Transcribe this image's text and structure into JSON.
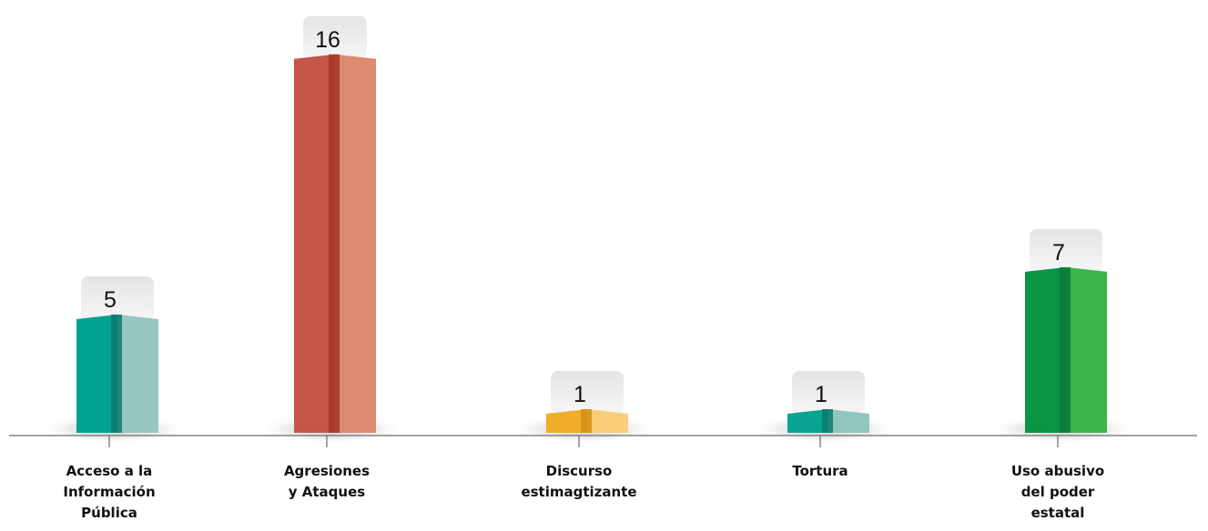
{
  "chart_data": {
    "type": "bar",
    "title": "",
    "xlabel": "",
    "ylabel": "",
    "categories": [
      "Acceso a la Información Pública",
      "Agresiones y Ataques",
      "Discurso estimagtizante",
      "Tortura",
      "Uso abusivo del poder estatal"
    ],
    "category_lines": [
      [
        "Acceso a la",
        "Información",
        "Pública"
      ],
      [
        "Agresiones",
        "y Ataques"
      ],
      [
        "Discurso",
        "estimagtizante"
      ],
      [
        "Tortura"
      ],
      [
        "Uso abusivo",
        "del poder",
        "estatal"
      ]
    ],
    "values": [
      5,
      16,
      1,
      1,
      7
    ],
    "data_labels": [
      "5",
      "16",
      "1",
      "1",
      "7"
    ],
    "ylim": [
      0,
      16.3
    ],
    "grid": false,
    "legend": "none",
    "colors": [
      {
        "dark": "#00a392",
        "light": "#96c7c0",
        "edge": "#0b7a6c"
      },
      {
        "dark": "#c5564a",
        "light": "#dc8b70",
        "edge": "#a33424"
      },
      {
        "dark": "#f0ad2a",
        "light": "#f8ce7b",
        "edge": "#d48e14"
      },
      {
        "dark": "#0aa392",
        "light": "#8fc7bf",
        "edge": "#0b7a6c"
      },
      {
        "dark": "#0b9444",
        "light": "#3ab54a",
        "edge": "#087a36"
      }
    ]
  }
}
